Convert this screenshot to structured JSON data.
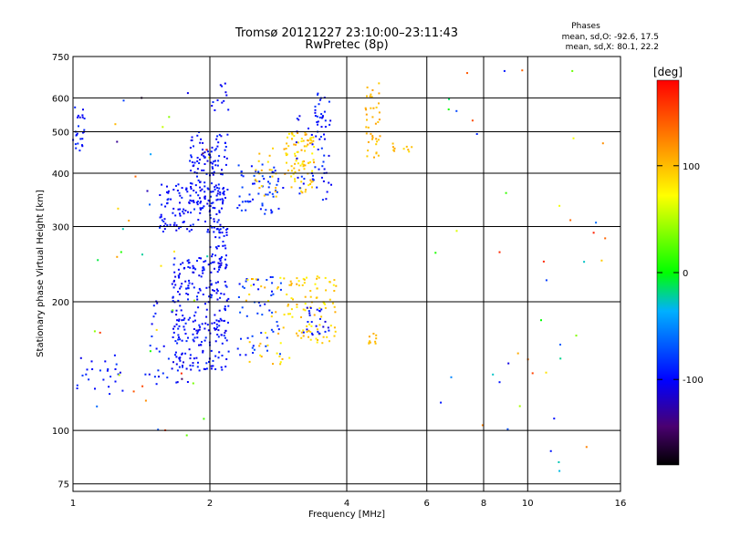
{
  "chart_data": {
    "type": "scatter",
    "title": "Tromsø 20121227 23:10:00–23:11:43",
    "subtitle": "RwPretec (8p)",
    "xlabel": "Frequency [MHz]",
    "ylabel": "Stationary phase Virtual Height [km]",
    "xscale": "log",
    "yscale": "log",
    "xlim": [
      1,
      16
    ],
    "ylim": [
      72,
      750
    ],
    "xticks": [
      "1",
      "2",
      "4",
      "6",
      "8",
      "10",
      "16"
    ],
    "xtick_values": [
      1,
      2,
      4,
      6,
      8,
      10,
      16
    ],
    "yticks": [
      "75",
      "100",
      "200",
      "300",
      "400",
      "500",
      "600",
      "750"
    ],
    "ytick_values": [
      75,
      100,
      200,
      300,
      400,
      500,
      600,
      750
    ],
    "grid": true,
    "stats_header": "Phases",
    "stats_o": "mean, sd,O: -92.6, 17.5",
    "stats_x": "mean, sd,X:  80.1, 22.2",
    "colorbar": {
      "label": "[deg]",
      "range": [
        -180,
        180
      ],
      "ticks": [
        "100",
        "0",
        "-100"
      ],
      "tick_values": [
        100,
        0,
        -100
      ]
    },
    "clusters": [
      {
        "f": [
          1.0,
          1.06
        ],
        "h": [
          440,
          590
        ],
        "phase": [
          -110,
          -80
        ],
        "n": 25
      },
      {
        "f": [
          1.02,
          1.3
        ],
        "h": [
          118,
          150
        ],
        "phase": [
          -110,
          -80
        ],
        "n": 25
      },
      {
        "f": [
          1.4,
          1.8
        ],
        "h": [
          128,
          200
        ],
        "phase": [
          -115,
          -80
        ],
        "n": 35
      },
      {
        "f": [
          1.55,
          2.15
        ],
        "h": [
          290,
          380
        ],
        "phase": [
          -110,
          -85
        ],
        "n": 140
      },
      {
        "f": [
          1.8,
          2.2
        ],
        "h": [
          340,
          500
        ],
        "phase": [
          -110,
          -85
        ],
        "n": 110
      },
      {
        "f": [
          1.65,
          2.2
        ],
        "h": [
          138,
          255
        ],
        "phase": [
          -110,
          -85
        ],
        "n": 260
      },
      {
        "f": [
          2.0,
          2.2
        ],
        "h": [
          240,
          300
        ],
        "phase": [
          -110,
          -85
        ],
        "n": 35
      },
      {
        "f": [
          2.0,
          2.2
        ],
        "h": [
          540,
          650
        ],
        "phase": [
          -110,
          -85
        ],
        "n": 12
      },
      {
        "f": [
          2.3,
          2.9
        ],
        "h": [
          320,
          420
        ],
        "phase": [
          -100,
          -70
        ],
        "n": 60
      },
      {
        "f": [
          2.3,
          2.9
        ],
        "h": [
          150,
          230
        ],
        "phase": [
          -100,
          -70
        ],
        "n": 50
      },
      {
        "f": [
          2.4,
          3.0
        ],
        "h": [
          140,
          230
        ],
        "phase": [
          70,
          110
        ],
        "n": 35
      },
      {
        "f": [
          2.5,
          2.8
        ],
        "h": [
          340,
          470
        ],
        "phase": [
          80,
          110
        ],
        "n": 20
      },
      {
        "f": [
          2.9,
          3.4
        ],
        "h": [
          360,
          500
        ],
        "phase": [
          75,
          115
        ],
        "n": 90
      },
      {
        "f": [
          2.9,
          3.8
        ],
        "h": [
          160,
          230
        ],
        "phase": [
          75,
          110
        ],
        "n": 90
      },
      {
        "f": [
          3.1,
          3.7
        ],
        "h": [
          340,
          560
        ],
        "phase": [
          -110,
          -80
        ],
        "n": 45
      },
      {
        "f": [
          3.2,
          3.7
        ],
        "h": [
          165,
          195
        ],
        "phase": [
          -115,
          -85
        ],
        "n": 25
      },
      {
        "f": [
          3.4,
          3.7
        ],
        "h": [
          480,
          620
        ],
        "phase": [
          -110,
          -80
        ],
        "n": 25
      },
      {
        "f": [
          4.4,
          4.75
        ],
        "h": [
          430,
          650
        ],
        "phase": [
          90,
          115
        ],
        "n": 40
      },
      {
        "f": [
          4.45,
          4.65
        ],
        "h": [
          158,
          172
        ],
        "phase": [
          90,
          110
        ],
        "n": 10
      },
      {
        "f": [
          5.0,
          5.6
        ],
        "h": [
          440,
          470
        ],
        "phase": [
          85,
          110
        ],
        "n": 10
      },
      {
        "f": [
          6.0,
          15.0
        ],
        "h": [
          80,
          700
        ],
        "phase": [
          -110,
          175
        ],
        "n": 45
      },
      {
        "f": [
          1.1,
          2.0
        ],
        "h": [
          95,
          620
        ],
        "phase": [
          -180,
          180
        ],
        "n": 45
      }
    ]
  }
}
